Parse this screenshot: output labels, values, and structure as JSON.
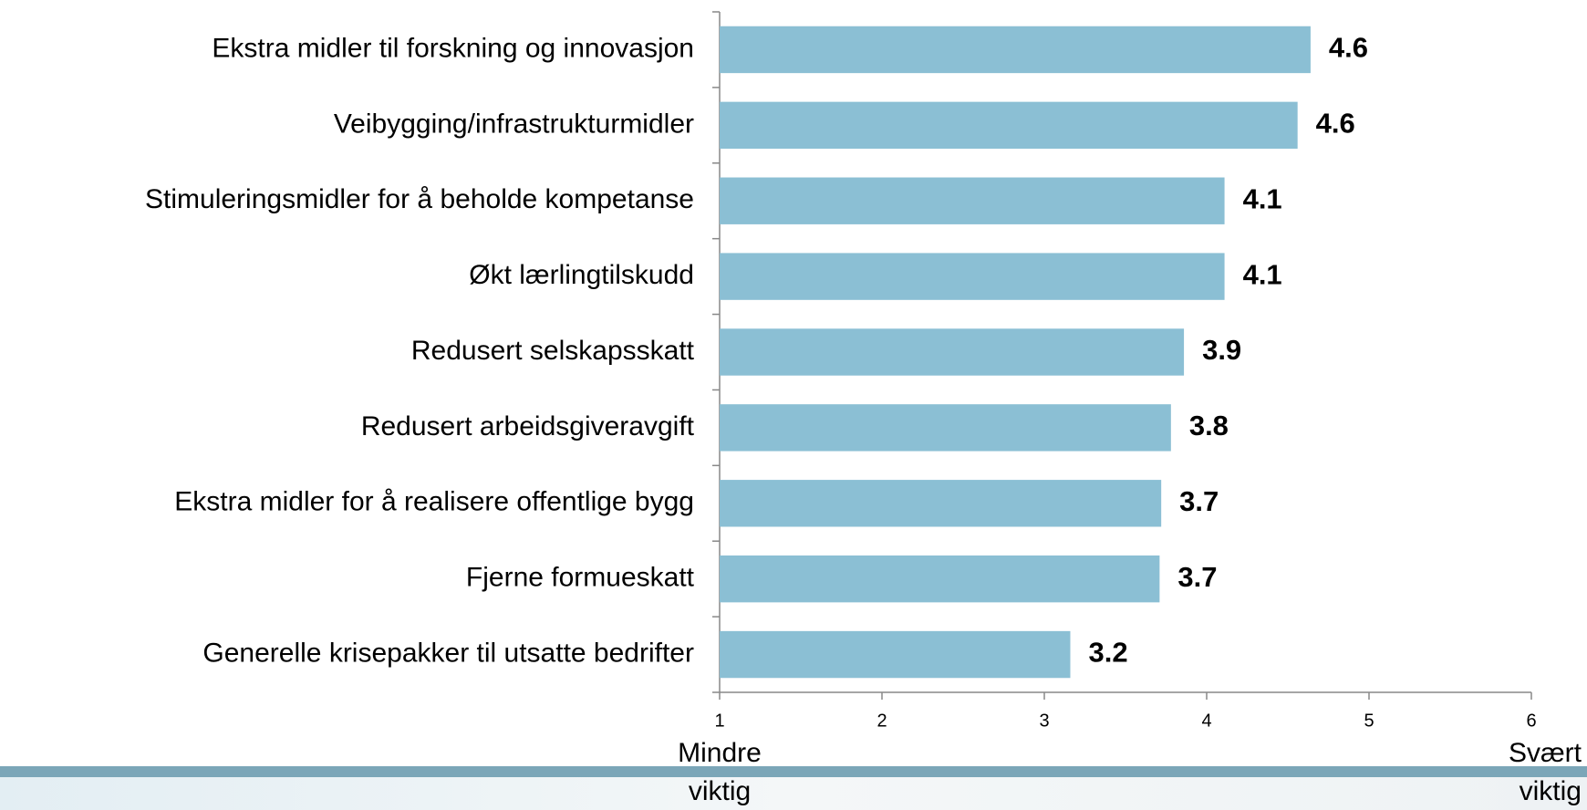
{
  "chart_data": {
    "type": "bar",
    "orientation": "horizontal",
    "categories": [
      "Ekstra midler til forskning og innovasjon",
      "Veibygging/infrastrukturmidler",
      "Stimuleringsmidler for å beholde kompetanse",
      "Økt lærlingtilskudd",
      "Redusert selskapsskatt",
      "Redusert arbeidsgiveravgift",
      "Ekstra midler for å realisere offentlige bygg",
      "Fjerne formueskatt",
      "Generelle krisepakker til utsatte bedrifter"
    ],
    "values": [
      4.64,
      4.56,
      4.11,
      4.11,
      3.86,
      3.78,
      3.72,
      3.71,
      3.16
    ],
    "value_labels": [
      "4.6",
      "4.6",
      "4.1",
      "4.1",
      "3.9",
      "3.8",
      "3.7",
      "3.7",
      "3.2"
    ],
    "color": "#8bbfd4",
    "xlim": [
      1,
      6
    ],
    "xticks": [
      1,
      2,
      3,
      4,
      5,
      6
    ],
    "x_low_label": "Mindre viktig",
    "x_high_label": "Svært viktig"
  }
}
